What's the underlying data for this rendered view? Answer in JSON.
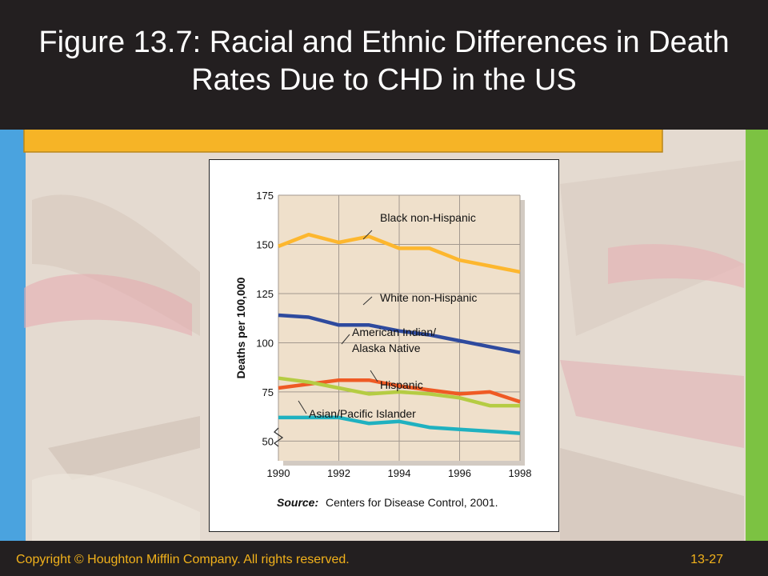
{
  "slide": {
    "title": "Figure 13.7: Racial and Ethnic Differences in Death Rates Due to CHD in the US",
    "footer_copyright": "Copyright © Houghton Mifflin Company. All rights reserved.",
    "footer_page": "13-27",
    "colors": {
      "title_bg": "#231f20",
      "title_text": "#ffffff",
      "footer_text": "#f2b21b",
      "left_stripe": "#4aa3df",
      "right_stripe": "#7cc242",
      "orange_banner": "#f6b426"
    }
  },
  "chart_data": {
    "type": "line",
    "title": "",
    "xlabel": "",
    "ylabel": "Deaths per 100,000",
    "xlim": [
      1990,
      1998
    ],
    "ylim": [
      40,
      175
    ],
    "xticks": [
      "1990",
      "1992",
      "1994",
      "1996",
      "1998"
    ],
    "yticks": [
      "50",
      "75",
      "100",
      "125",
      "150",
      "175"
    ],
    "grid": true,
    "plot_background": "#efe0cb",
    "source_label": "Source:",
    "source_text": "Centers for Disease Control, 2001.",
    "x": [
      1990,
      1991,
      1992,
      1993,
      1994,
      1995,
      1996,
      1997,
      1998
    ],
    "series": [
      {
        "name": "Black non-Hispanic",
        "color": "#fdb72e",
        "values": [
          149,
          155,
          151,
          154,
          148,
          148,
          142,
          139,
          136
        ]
      },
      {
        "name": "White non-Hispanic",
        "color": "#2e4a9e",
        "values": [
          114,
          113,
          109,
          109,
          106,
          104,
          101,
          98,
          95
        ]
      },
      {
        "name": "American Indian/ Alaska Native",
        "color": "#ef5a24",
        "values": [
          77,
          79,
          81,
          81,
          78,
          76,
          74,
          75,
          70
        ]
      },
      {
        "name": "Hispanic",
        "color": "#b5cc43",
        "values": [
          82,
          80,
          77,
          74,
          75,
          74,
          72,
          68,
          68
        ]
      },
      {
        "name": "Asian/Pacific Islander",
        "color": "#1fb1c0",
        "values": [
          62,
          62,
          62,
          59,
          60,
          57,
          56,
          55,
          54
        ]
      }
    ]
  }
}
